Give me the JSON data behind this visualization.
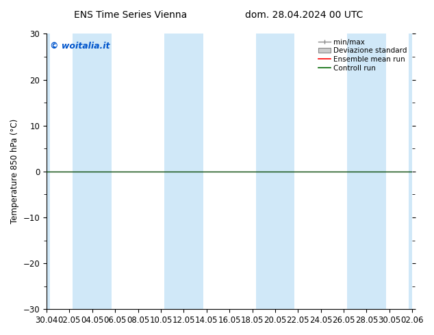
{
  "title_left": "ENS Time Series Vienna",
  "title_right": "dom. 28.04.2024 00 UTC",
  "ylabel": "Temperature 850 hPa (°C)",
  "ylim": [
    -30,
    30
  ],
  "yticks": [
    -30,
    -20,
    -10,
    0,
    10,
    20,
    30
  ],
  "xlabel_ticks": [
    "30.04",
    "02.05",
    "04.05",
    "06.05",
    "08.05",
    "10.05",
    "12.05",
    "14.05",
    "16.05",
    "18.05",
    "20.05",
    "22.05",
    "24.05",
    "26.05",
    "28.05",
    "30.05",
    "02.06"
  ],
  "watermark": "© woitalia.it",
  "watermark_color": "#0055cc",
  "bg_color": "#ffffff",
  "plot_bg_color": "#ffffff",
  "shaded_band_color": "#d0e8f8",
  "zero_line_color": "#004400",
  "zero_line_y": 0,
  "legend_labels": [
    "min/max",
    "Deviazione standard",
    "Ensemble mean run",
    "Controll run"
  ],
  "legend_colors": [
    "#aaaaaa",
    "#cccccc",
    "#ff0000",
    "#006600"
  ],
  "font_size": 8.5,
  "title_fontsize": 10
}
